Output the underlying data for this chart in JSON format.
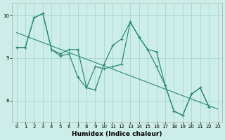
{
  "line1_x": [
    0,
    1,
    2,
    3,
    4,
    5,
    6,
    7,
    8,
    9,
    10,
    11,
    12,
    13,
    14,
    15,
    16,
    17,
    18,
    19,
    20,
    21,
    22,
    23
  ],
  "line1_y": [
    9.25,
    9.25,
    9.95,
    10.05,
    9.2,
    9.05,
    9.1,
    8.55,
    8.3,
    8.8,
    8.75,
    8.8,
    8.85,
    9.85,
    9.5,
    9.2,
    8.8,
    8.35,
    7.75,
    7.65,
    8.15,
    8.3,
    7.85,
    null
  ],
  "line2_x": [
    0,
    1,
    2,
    3,
    4,
    5,
    6,
    7,
    8,
    9,
    10,
    11,
    12,
    13,
    14,
    15,
    16,
    17,
    18,
    19,
    20,
    21,
    22,
    23
  ],
  "line2_y": [
    9.25,
    9.25,
    9.95,
    10.05,
    9.2,
    9.1,
    9.2,
    9.2,
    8.3,
    8.25,
    8.85,
    9.3,
    9.45,
    9.85,
    9.5,
    9.2,
    9.15,
    8.35,
    7.75,
    7.65,
    8.15,
    8.3,
    7.85,
    null
  ],
  "trend_x": [
    0,
    23
  ],
  "trend_y": [
    9.6,
    7.8
  ],
  "line_color": "#2e8b72",
  "bg_color": "#cdeee8",
  "plot_bg": "#cdeee8",
  "grid_color": "#9dd4cc",
  "xlabel": "Humidex (Indice chaleur)",
  "xlim": [
    -0.5,
    23.5
  ],
  "ylim": [
    7.5,
    10.3
  ],
  "yticks": [
    8,
    9,
    10
  ],
  "xticks": [
    0,
    1,
    2,
    3,
    4,
    5,
    6,
    7,
    8,
    9,
    10,
    11,
    12,
    13,
    14,
    15,
    16,
    17,
    18,
    19,
    20,
    21,
    22,
    23
  ]
}
